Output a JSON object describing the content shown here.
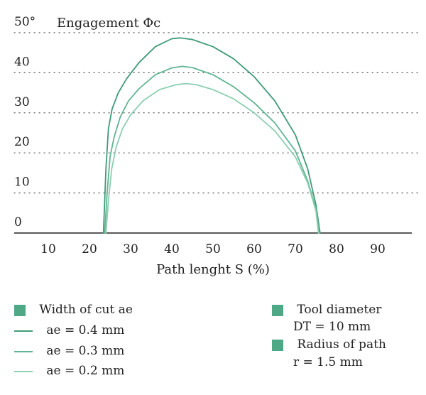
{
  "chart_data": {
    "type": "line",
    "title": "Engagement Φc",
    "xlabel": "Path lenght S (%)",
    "ylabel": "Engagement Φc",
    "xlim": [
      0,
      100
    ],
    "ylim": [
      0,
      50
    ],
    "x_ticks": [
      "10",
      "20",
      "30",
      "40",
      "50",
      "60",
      "70",
      "80",
      "90"
    ],
    "y_ticks": [
      "0",
      "10",
      "20",
      "30",
      "40",
      "50°"
    ],
    "grid": "horizontal dotted",
    "series": [
      {
        "name": "ae = 0.4 mm",
        "color": "#3f9b78",
        "points": [
          [
            23.4,
            0
          ],
          [
            24,
            16
          ],
          [
            24.6,
            26
          ],
          [
            25.5,
            31
          ],
          [
            27,
            35
          ],
          [
            29,
            38.5
          ],
          [
            32,
            42.5
          ],
          [
            36,
            46.5
          ],
          [
            40,
            48.5
          ],
          [
            42,
            48.7
          ],
          [
            45,
            48.3
          ],
          [
            50,
            46.5
          ],
          [
            55,
            43.5
          ],
          [
            60,
            39
          ],
          [
            65,
            33
          ],
          [
            70,
            24.5
          ],
          [
            73,
            16
          ],
          [
            75,
            7
          ],
          [
            76,
            0
          ]
        ]
      },
      {
        "name": "ae = 0.3 mm",
        "color": "#5fb592",
        "points": [
          [
            23.7,
            0
          ],
          [
            24.3,
            10
          ],
          [
            25,
            19
          ],
          [
            26,
            24
          ],
          [
            27.5,
            29
          ],
          [
            29.5,
            33
          ],
          [
            32,
            36
          ],
          [
            36,
            39.5
          ],
          [
            40,
            41.2
          ],
          [
            42.5,
            41.6
          ],
          [
            45,
            41.3
          ],
          [
            50,
            39.5
          ],
          [
            55,
            36.5
          ],
          [
            60,
            32.5
          ],
          [
            65,
            27.5
          ],
          [
            70,
            20.5
          ],
          [
            73,
            13
          ],
          [
            75,
            6
          ],
          [
            75.8,
            0
          ]
        ]
      },
      {
        "name": "ae = 0.2 mm",
        "color": "#8ccfb2",
        "points": [
          [
            24,
            0
          ],
          [
            24.6,
            8
          ],
          [
            25.4,
            16
          ],
          [
            26.5,
            21.5
          ],
          [
            28,
            26
          ],
          [
            30,
            29.5
          ],
          [
            33,
            33
          ],
          [
            37,
            35.8
          ],
          [
            41,
            37
          ],
          [
            43.5,
            37.3
          ],
          [
            46,
            37
          ],
          [
            50,
            35.8
          ],
          [
            55,
            33.5
          ],
          [
            60,
            30
          ],
          [
            65,
            25.5
          ],
          [
            70,
            19
          ],
          [
            73,
            12.5
          ],
          [
            75,
            5.5
          ],
          [
            75.6,
            0
          ]
        ]
      }
    ]
  },
  "legend_left": {
    "heading": "Width of cut ae",
    "items": [
      "ae = 0.4 mm",
      "ae = 0.3 mm",
      "ae = 0.2 mm"
    ]
  },
  "legend_right": {
    "tool_diameter_label": "Tool diameter",
    "tool_diameter_value": "DT = 10 mm",
    "radius_label": "Radius of path",
    "radius_value": "r = 1.5 mm"
  },
  "colors": {
    "marker": "#4ea886",
    "axis": "#222222",
    "grid": "#555555"
  }
}
